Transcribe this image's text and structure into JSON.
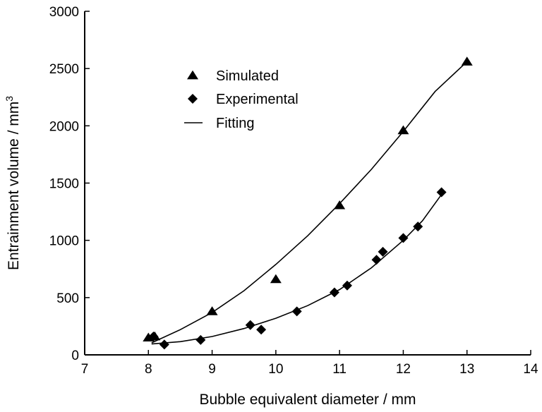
{
  "chart_data": {
    "type": "scatter",
    "xlabel": "Bubble equivalent diameter / mm",
    "ylabel": "Entrainment volume / mm",
    "ylabel_superscript": "3",
    "xlim": [
      7,
      14
    ],
    "ylim": [
      0,
      3000
    ],
    "xticks": [
      7,
      8,
      9,
      10,
      11,
      12,
      13,
      14
    ],
    "yticks": [
      0,
      500,
      1000,
      1500,
      2000,
      2500,
      3000
    ],
    "grid": false,
    "legend_position": "top-left",
    "series": [
      {
        "name": "Simulated",
        "marker": "triangle",
        "points": [
          {
            "x": 8.0,
            "y": 150
          },
          {
            "x": 8.1,
            "y": 160
          },
          {
            "x": 9.0,
            "y": 380
          },
          {
            "x": 10.0,
            "y": 660
          },
          {
            "x": 11.0,
            "y": 1305
          },
          {
            "x": 12.0,
            "y": 1960
          },
          {
            "x": 13.0,
            "y": 2560
          }
        ]
      },
      {
        "name": "Experimental",
        "marker": "diamond",
        "points": [
          {
            "x": 8.08,
            "y": 160
          },
          {
            "x": 8.25,
            "y": 90
          },
          {
            "x": 8.82,
            "y": 130
          },
          {
            "x": 9.6,
            "y": 260
          },
          {
            "x": 9.77,
            "y": 220
          },
          {
            "x": 10.33,
            "y": 380
          },
          {
            "x": 10.92,
            "y": 545
          },
          {
            "x": 11.12,
            "y": 605
          },
          {
            "x": 11.58,
            "y": 830
          },
          {
            "x": 11.68,
            "y": 900
          },
          {
            "x": 12.0,
            "y": 1020
          },
          {
            "x": 12.23,
            "y": 1120
          },
          {
            "x": 12.6,
            "y": 1420
          }
        ]
      },
      {
        "name": "Fitting",
        "marker": "line",
        "curves": [
          {
            "name": "simulated-fit",
            "points": [
              {
                "x": 8.05,
                "y": 105
              },
              {
                "x": 8.5,
                "y": 220
              },
              {
                "x": 9.0,
                "y": 370
              },
              {
                "x": 9.5,
                "y": 560
              },
              {
                "x": 10.0,
                "y": 790
              },
              {
                "x": 10.5,
                "y": 1040
              },
              {
                "x": 11.0,
                "y": 1320
              },
              {
                "x": 11.5,
                "y": 1620
              },
              {
                "x": 12.0,
                "y": 1950
              },
              {
                "x": 12.5,
                "y": 2300
              },
              {
                "x": 13.0,
                "y": 2560
              }
            ]
          },
          {
            "name": "experimental-fit",
            "points": [
              {
                "x": 8.05,
                "y": 95
              },
              {
                "x": 8.5,
                "y": 115
              },
              {
                "x": 9.0,
                "y": 160
              },
              {
                "x": 9.5,
                "y": 230
              },
              {
                "x": 10.0,
                "y": 320
              },
              {
                "x": 10.5,
                "y": 430
              },
              {
                "x": 11.0,
                "y": 570
              },
              {
                "x": 11.5,
                "y": 760
              },
              {
                "x": 12.0,
                "y": 1000
              },
              {
                "x": 12.3,
                "y": 1170
              },
              {
                "x": 12.6,
                "y": 1400
              }
            ]
          }
        ]
      }
    ]
  }
}
